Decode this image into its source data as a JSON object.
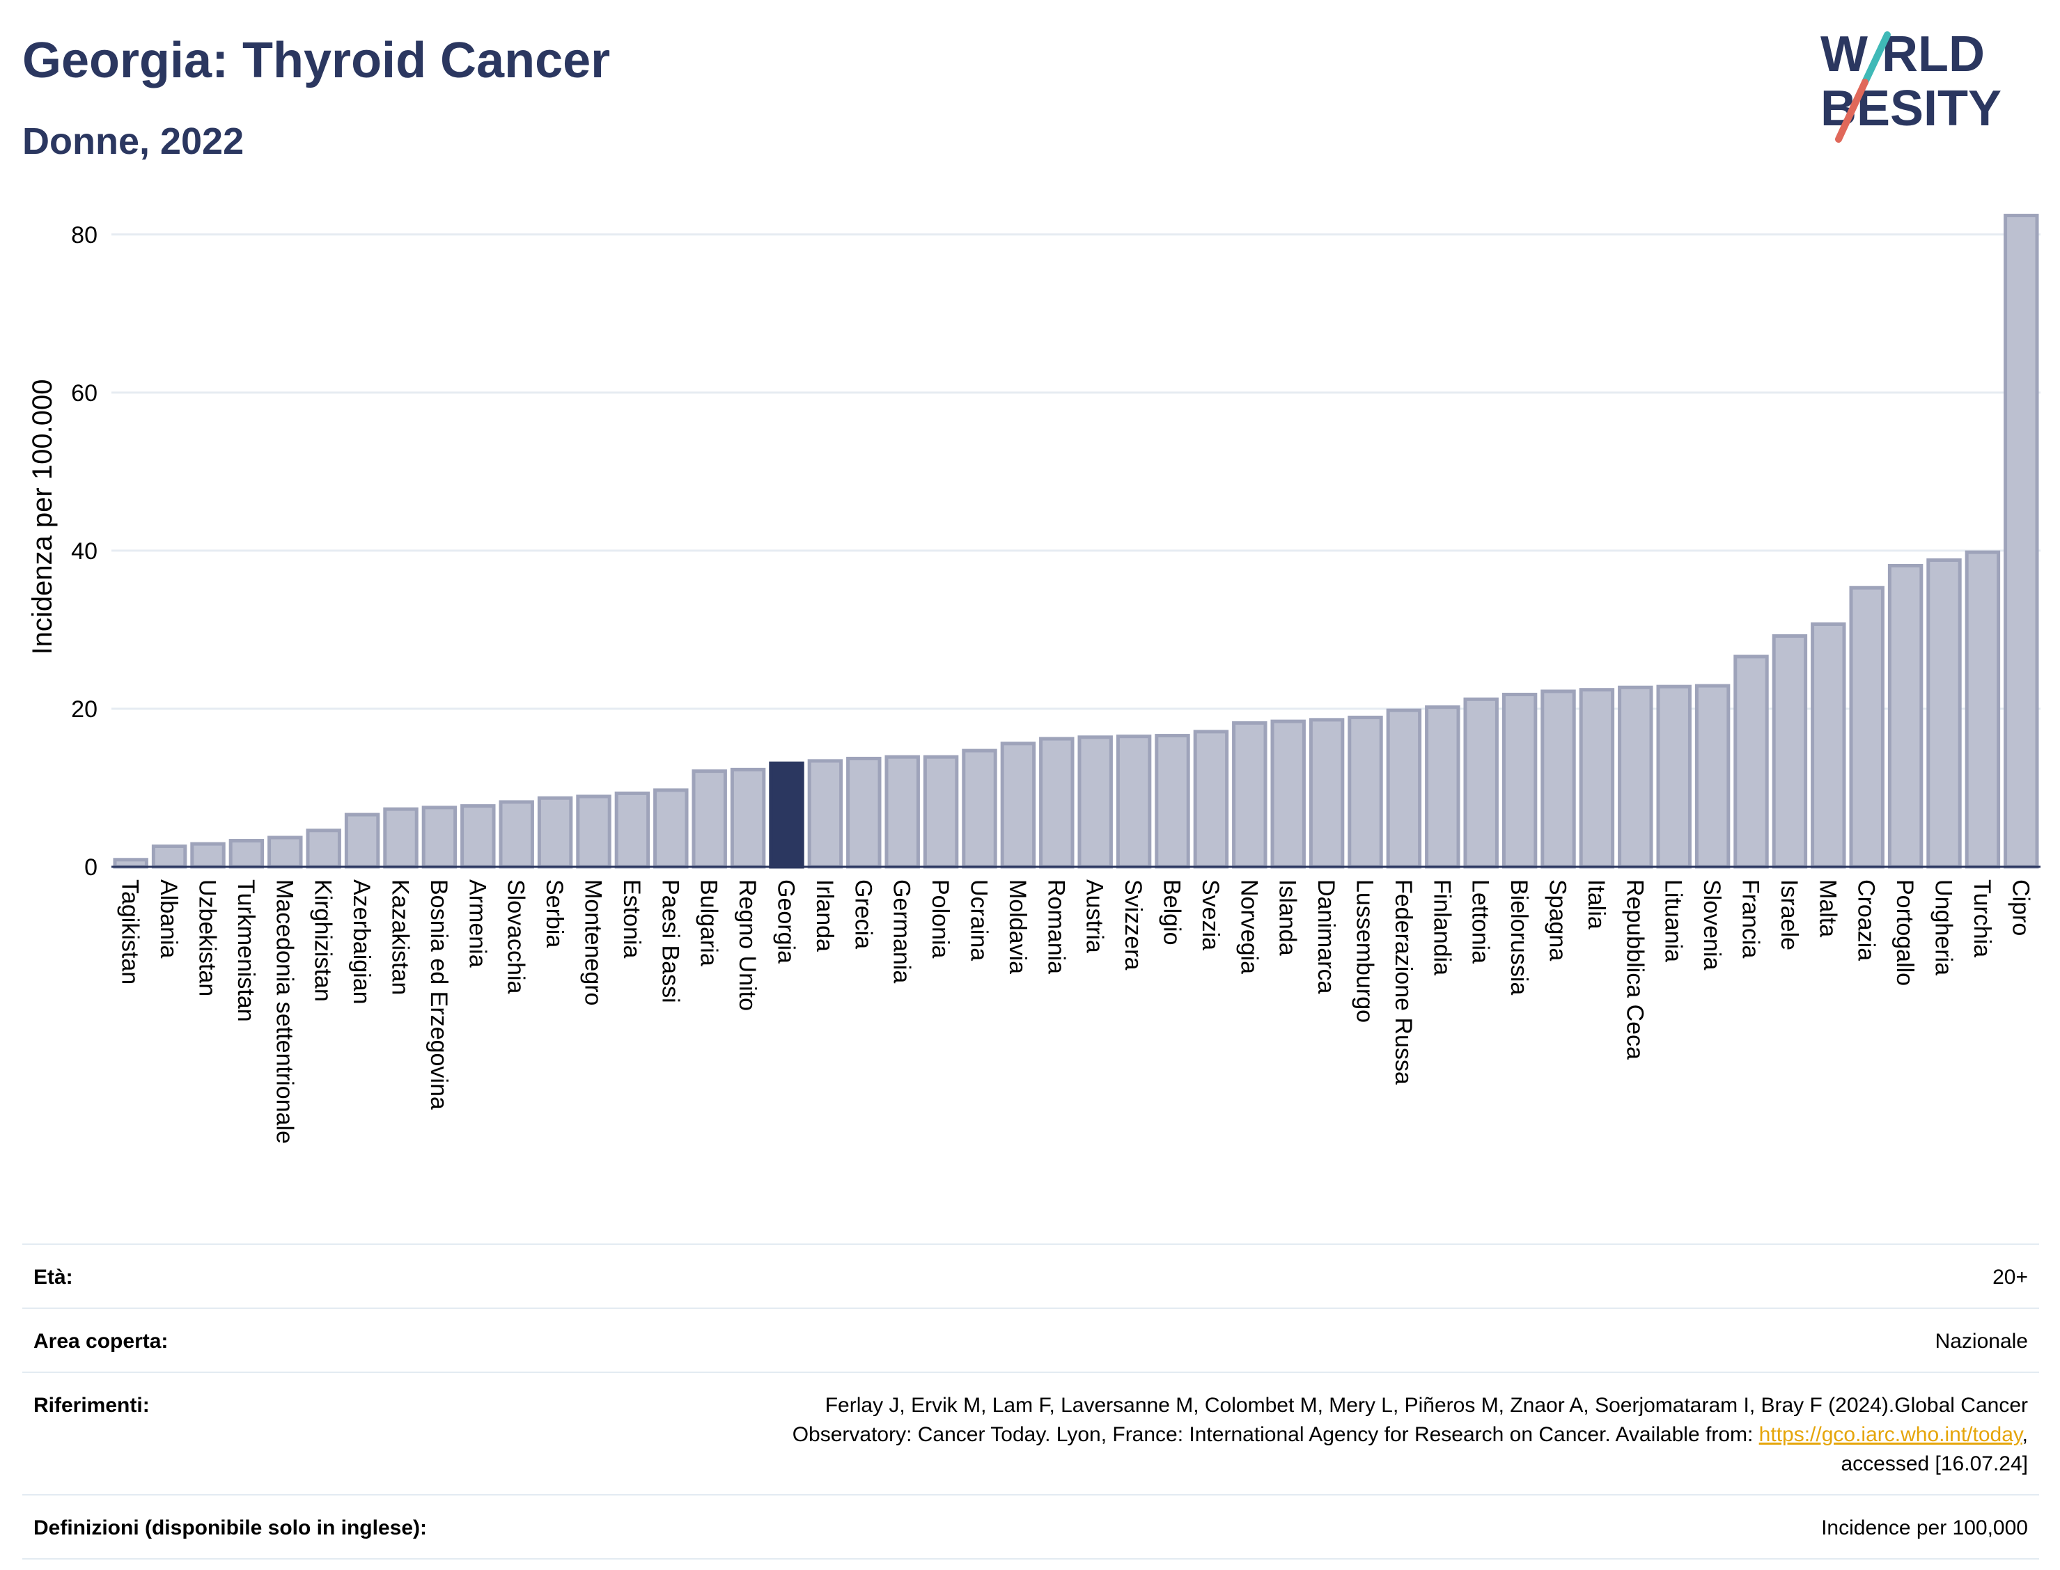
{
  "header": {
    "title": "Georgia: Thyroid Cancer",
    "subtitle": "Donne, 2022"
  },
  "logo": {
    "line1": "W RLD",
    "line2": "BESITY",
    "text": "WORLD OBESITY",
    "colors": {
      "text": "#2b3760",
      "slash_teal": "#3fb9b7",
      "slash_red": "#e0685a"
    }
  },
  "colors": {
    "bar": "#bcc0d0",
    "bar_border": "#9ea3ba",
    "highlight": "#2b3760",
    "grid": "#e6ecf2"
  },
  "chart_data": {
    "type": "bar",
    "title": "",
    "xlabel": "",
    "ylabel": "Incidenza per 100.000",
    "ylim": [
      0,
      85
    ],
    "yticks": [
      0,
      20,
      40,
      60,
      80
    ],
    "grid": true,
    "highlight": "Georgia",
    "categories": [
      "Tagikistan",
      "Albania",
      "Uzbekistan",
      "Turkmenistan",
      "Macedonia settentrionale",
      "Kirghizistan",
      "Azerbaigian",
      "Kazakistan",
      "Bosnia ed Erzegovina",
      "Armenia",
      "Slovacchia",
      "Serbia",
      "Montenegro",
      "Estonia",
      "Paesi Bassi",
      "Bulgaria",
      "Regno Unito",
      "Georgia",
      "Irlanda",
      "Grecia",
      "Germania",
      "Polonia",
      "Ucraina",
      "Moldavia",
      "Romania",
      "Austria",
      "Svizzera",
      "Belgio",
      "Svezia",
      "Norvegia",
      "Islanda",
      "Danimarca",
      "Lussemburgo",
      "Federazione Russa",
      "Finlandia",
      "Lettonia",
      "Bielorussia",
      "Spagna",
      "Italia",
      "Repubblica Ceca",
      "Lituania",
      "Slovenia",
      "Francia",
      "Israele",
      "Malta",
      "Croazia",
      "Portogallo",
      "Ungheria",
      "Turchia",
      "Cipro"
    ],
    "values": [
      0.9,
      2.6,
      2.9,
      3.3,
      3.7,
      4.6,
      6.6,
      7.3,
      7.5,
      7.7,
      8.2,
      8.7,
      8.9,
      9.3,
      9.7,
      12.1,
      12.3,
      13.1,
      13.4,
      13.7,
      13.9,
      13.9,
      14.7,
      15.6,
      16.2,
      16.4,
      16.5,
      16.6,
      17.1,
      18.2,
      18.4,
      18.6,
      18.9,
      19.8,
      20.2,
      21.2,
      21.8,
      22.2,
      22.4,
      22.7,
      22.8,
      22.9,
      26.6,
      29.2,
      30.7,
      35.3,
      38.1,
      38.8,
      39.8,
      82.4
    ]
  },
  "info": {
    "age_label": "Età:",
    "age_value": "20+",
    "area_label": "Area coperta:",
    "area_value": "Nazionale",
    "ref_label": "Riferimenti:",
    "ref_text_1": "Ferlay J, Ervik M, Lam F, Laversanne M, Colombet M, Mery L, Piñeros M, Znaor A, Soerjomataram I, Bray F (2024).Global Cancer",
    "ref_text_2": "Observatory: Cancer Today. Lyon, France: International Agency for Research on Cancer. Available from: ",
    "ref_link": "https://gco.iarc.who.int/today",
    "ref_text_3": ",",
    "ref_text_4": "accessed [16.07.24]",
    "def_label": "Definizioni (disponibile solo in inglese):",
    "def_value": "Incidence per 100,000"
  }
}
